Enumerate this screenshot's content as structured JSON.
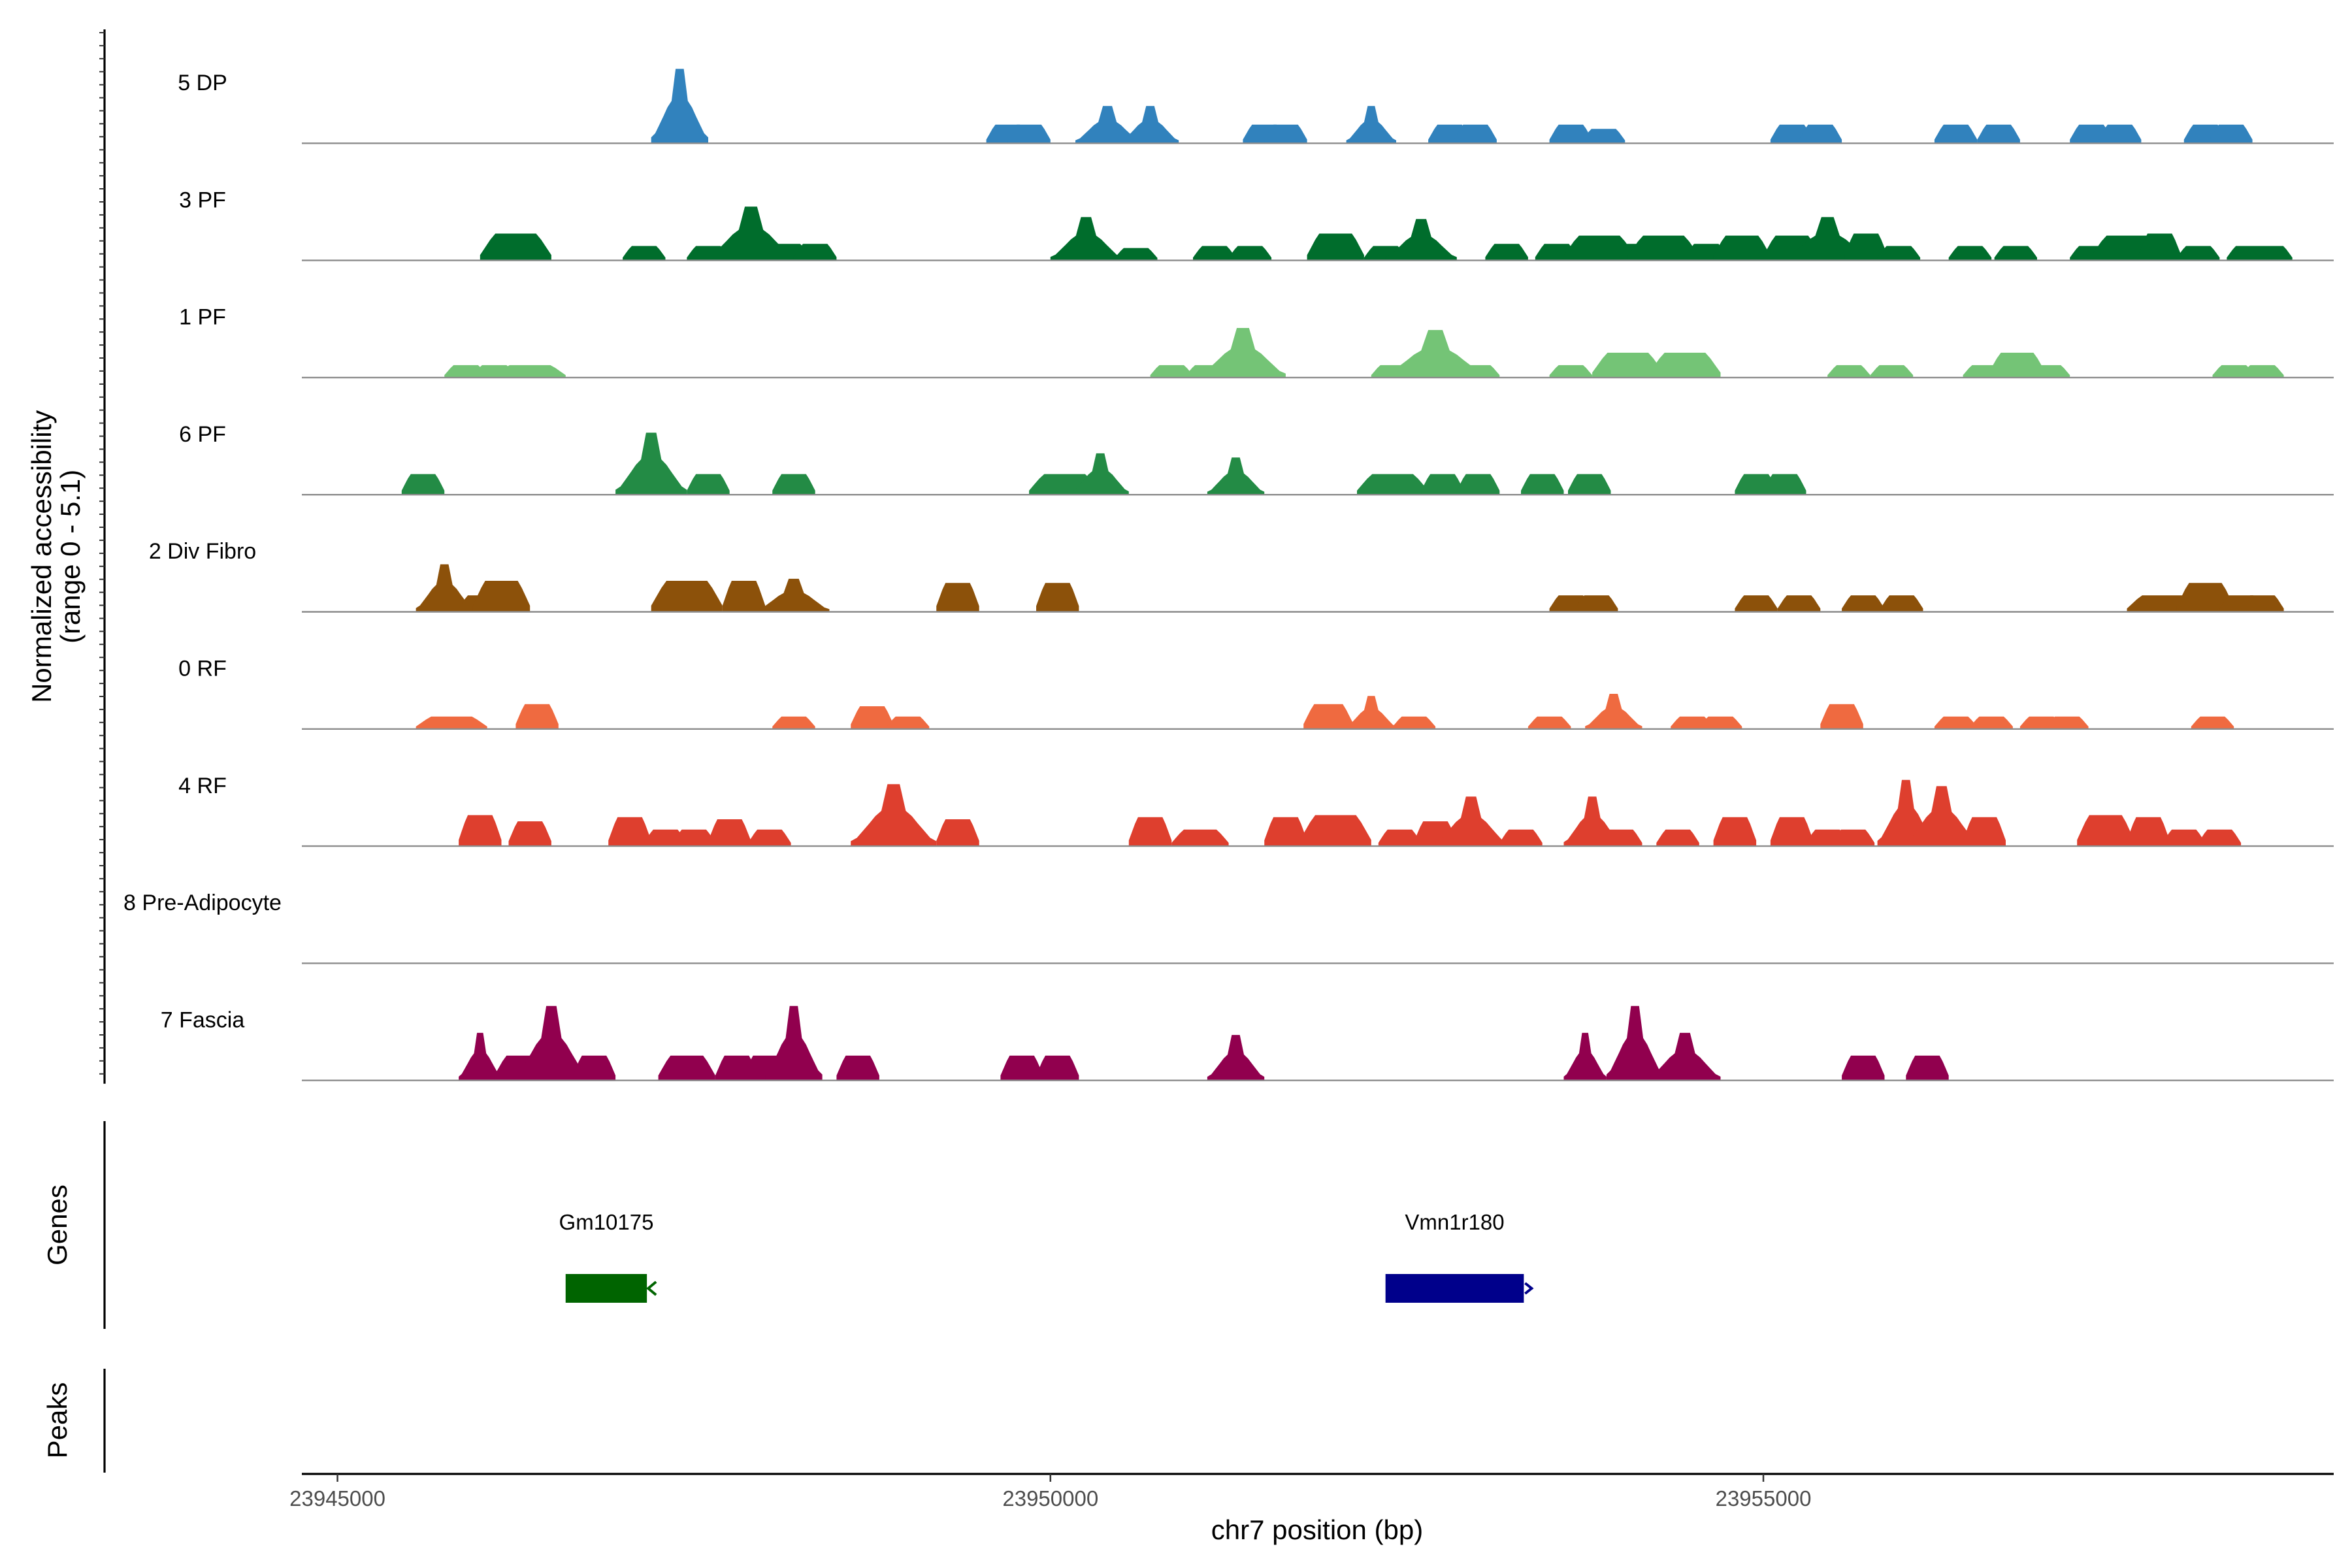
{
  "chart_data": {
    "type": "area",
    "title": "",
    "chromosome": "chr7",
    "xlabel": "chr7 position (bp)",
    "ylabel": [
      "Normalized accessibility",
      "(range 0 - 5.1)"
    ],
    "xlim": [
      23944750,
      23959000
    ],
    "ylim": [
      0,
      5.1
    ],
    "x_ticks": [
      {
        "value": 23945000,
        "label": "23945000"
      },
      {
        "value": 23950000,
        "label": "23950000"
      },
      {
        "value": 23955000,
        "label": "23955000"
      }
    ],
    "panel_titles": {
      "genes": "Genes",
      "peaks": "Peaks"
    },
    "series": [
      {
        "name": "5 DP",
        "color": "#3182BD",
        "peaks": [
          [
            23947400,
            0.4,
            3.6
          ],
          [
            23949700,
            0.3,
            0.9
          ],
          [
            23949850,
            0.3,
            0.9
          ],
          [
            23950400,
            0.45,
            1.8
          ],
          [
            23950700,
            0.4,
            1.8
          ],
          [
            23951500,
            0.3,
            0.9
          ],
          [
            23951650,
            0.3,
            0.9
          ],
          [
            23952250,
            0.35,
            1.8
          ],
          [
            23952800,
            0.3,
            0.9
          ],
          [
            23952980,
            0.3,
            0.9
          ],
          [
            23953650,
            0.3,
            0.9
          ],
          [
            23953880,
            0.3,
            0.7
          ],
          [
            23955200,
            0.3,
            0.9
          ],
          [
            23955400,
            0.3,
            0.9
          ],
          [
            23956350,
            0.3,
            0.9
          ],
          [
            23956650,
            0.3,
            0.9
          ],
          [
            23957300,
            0.3,
            0.9
          ],
          [
            23957500,
            0.3,
            0.9
          ],
          [
            23958100,
            0.3,
            0.9
          ],
          [
            23958280,
            0.3,
            0.9
          ]
        ]
      },
      {
        "name": "3 PF",
        "color": "#006D2C",
        "peaks": [
          [
            23946250,
            0.5,
            1.3
          ],
          [
            23947150,
            0.3,
            0.7
          ],
          [
            23947600,
            0.3,
            0.7
          ],
          [
            23947900,
            0.6,
            2.6
          ],
          [
            23948130,
            0.4,
            0.8
          ],
          [
            23948350,
            0.3,
            0.8
          ],
          [
            23950250,
            0.5,
            2.1
          ],
          [
            23950600,
            0.3,
            0.6
          ],
          [
            23951150,
            0.3,
            0.7
          ],
          [
            23951400,
            0.3,
            0.7
          ],
          [
            23952000,
            0.4,
            1.3
          ],
          [
            23952350,
            0.3,
            0.7
          ],
          [
            23952600,
            0.5,
            2.0
          ],
          [
            23953200,
            0.3,
            0.8
          ],
          [
            23953550,
            0.3,
            0.8
          ],
          [
            23953850,
            0.5,
            1.2
          ],
          [
            23954070,
            0.3,
            0.8
          ],
          [
            23954300,
            0.5,
            1.2
          ],
          [
            23954600,
            0.3,
            0.8
          ],
          [
            23954850,
            0.4,
            1.2
          ],
          [
            23955200,
            0.4,
            1.2
          ],
          [
            23955450,
            0.6,
            2.1
          ],
          [
            23955720,
            0.3,
            1.3
          ],
          [
            23955950,
            0.3,
            0.7
          ],
          [
            23956450,
            0.3,
            0.7
          ],
          [
            23956770,
            0.3,
            0.7
          ],
          [
            23957300,
            0.3,
            0.7
          ],
          [
            23957550,
            0.5,
            1.2
          ],
          [
            23957780,
            0.3,
            1.3
          ],
          [
            23958050,
            0.3,
            0.7
          ],
          [
            23958400,
            0.3,
            0.7
          ],
          [
            23958560,
            0.3,
            0.7
          ]
        ]
      },
      {
        "name": "1 PF",
        "color": "#74C476",
        "peaks": [
          [
            23945900,
            0.3,
            0.6
          ],
          [
            23946100,
            0.3,
            0.6
          ],
          [
            23946350,
            0.5,
            0.6
          ],
          [
            23950850,
            0.3,
            0.6
          ],
          [
            23951100,
            0.3,
            0.6
          ],
          [
            23951350,
            0.6,
            2.4
          ],
          [
            23952400,
            0.3,
            0.6
          ],
          [
            23952700,
            0.7,
            2.3
          ],
          [
            23953000,
            0.3,
            0.6
          ],
          [
            23953650,
            0.3,
            0.6
          ],
          [
            23954050,
            0.5,
            1.2
          ],
          [
            23954450,
            0.5,
            1.2
          ],
          [
            23955600,
            0.3,
            0.6
          ],
          [
            23955900,
            0.3,
            0.6
          ],
          [
            23956550,
            0.3,
            0.6
          ],
          [
            23956780,
            0.4,
            1.2
          ],
          [
            23957000,
            0.3,
            0.6
          ],
          [
            23958300,
            0.3,
            0.6
          ],
          [
            23958500,
            0.3,
            0.6
          ]
        ]
      },
      {
        "name": "6 PF",
        "color": "#238B45",
        "peaks": [
          [
            23945600,
            0.3,
            1.0
          ],
          [
            23947200,
            0.5,
            3.0
          ],
          [
            23947600,
            0.3,
            1.0
          ],
          [
            23948200,
            0.3,
            1.0
          ],
          [
            23950100,
            0.5,
            1.0
          ],
          [
            23950350,
            0.4,
            2.0
          ],
          [
            23951300,
            0.4,
            1.8
          ],
          [
            23952400,
            0.5,
            1.0
          ],
          [
            23952750,
            0.3,
            1.0
          ],
          [
            23953000,
            0.3,
            1.0
          ],
          [
            23953450,
            0.3,
            1.0
          ],
          [
            23953780,
            0.3,
            1.0
          ],
          [
            23954950,
            0.3,
            1.0
          ],
          [
            23955150,
            0.3,
            1.0
          ]
        ]
      },
      {
        "name": "2 Div Fibro",
        "color": "#8C510A",
        "peaks": [
          [
            23945750,
            0.4,
            2.3
          ],
          [
            23946000,
            0.3,
            0.8
          ],
          [
            23946150,
            0.4,
            1.5
          ],
          [
            23947450,
            0.5,
            1.5
          ],
          [
            23947850,
            0.3,
            1.5
          ],
          [
            23948200,
            0.5,
            1.6
          ],
          [
            23949350,
            0.3,
            1.4
          ],
          [
            23950050,
            0.3,
            1.4
          ],
          [
            23953650,
            0.3,
            0.8
          ],
          [
            23953830,
            0.3,
            0.8
          ],
          [
            23954950,
            0.3,
            0.8
          ],
          [
            23955250,
            0.3,
            0.8
          ],
          [
            23955700,
            0.3,
            0.8
          ],
          [
            23955970,
            0.3,
            0.8
          ],
          [
            23957800,
            0.5,
            0.8
          ],
          [
            23958100,
            0.4,
            1.4
          ],
          [
            23958350,
            0.3,
            0.8
          ],
          [
            23958500,
            0.3,
            0.8
          ]
        ]
      },
      {
        "name": "0 RF",
        "color": "#EF6A40",
        "peaks": [
          [
            23945800,
            0.5,
            0.6
          ],
          [
            23946400,
            0.3,
            1.2
          ],
          [
            23948200,
            0.3,
            0.6
          ],
          [
            23948750,
            0.3,
            1.1
          ],
          [
            23949000,
            0.3,
            0.6
          ],
          [
            23951950,
            0.35,
            1.2
          ],
          [
            23952250,
            0.35,
            1.6
          ],
          [
            23952550,
            0.3,
            0.6
          ],
          [
            23953500,
            0.3,
            0.6
          ],
          [
            23953950,
            0.4,
            1.7
          ],
          [
            23954500,
            0.3,
            0.6
          ],
          [
            23954700,
            0.3,
            0.6
          ],
          [
            23955550,
            0.3,
            1.2
          ],
          [
            23956350,
            0.3,
            0.6
          ],
          [
            23956600,
            0.3,
            0.6
          ],
          [
            23956950,
            0.3,
            0.6
          ],
          [
            23957130,
            0.3,
            0.6
          ],
          [
            23958150,
            0.3,
            0.6
          ]
        ]
      },
      {
        "name": "4 RF",
        "color": "#DE3F2E",
        "peaks": [
          [
            23946000,
            0.3,
            1.5
          ],
          [
            23946350,
            0.3,
            1.2
          ],
          [
            23947050,
            0.3,
            1.4
          ],
          [
            23947300,
            0.3,
            0.8
          ],
          [
            23947500,
            0.3,
            0.8
          ],
          [
            23947750,
            0.3,
            1.3
          ],
          [
            23948030,
            0.3,
            0.8
          ],
          [
            23948900,
            0.6,
            3.0
          ],
          [
            23949350,
            0.3,
            1.3
          ],
          [
            23950700,
            0.3,
            1.4
          ],
          [
            23951050,
            0.4,
            0.8
          ],
          [
            23951650,
            0.3,
            1.4
          ],
          [
            23952000,
            0.5,
            1.5
          ],
          [
            23952450,
            0.3,
            0.8
          ],
          [
            23952700,
            0.3,
            1.2
          ],
          [
            23952950,
            0.5,
            2.4
          ],
          [
            23953300,
            0.3,
            0.8
          ],
          [
            23953800,
            0.4,
            2.4
          ],
          [
            23954000,
            0.3,
            0.8
          ],
          [
            23954400,
            0.3,
            0.8
          ],
          [
            23954800,
            0.3,
            1.4
          ],
          [
            23955200,
            0.3,
            1.4
          ],
          [
            23955450,
            0.3,
            0.8
          ],
          [
            23955630,
            0.3,
            0.8
          ],
          [
            23956000,
            0.4,
            3.2
          ],
          [
            23956250,
            0.5,
            2.9
          ],
          [
            23956550,
            0.3,
            1.4
          ],
          [
            23957400,
            0.4,
            1.5
          ],
          [
            23957700,
            0.3,
            1.4
          ],
          [
            23957950,
            0.3,
            0.8
          ],
          [
            23958200,
            0.3,
            0.8
          ]
        ]
      },
      {
        "name": "8 Pre-Adipocyte",
        "color": "#4A1486",
        "peaks": []
      },
      {
        "name": "7 Fascia",
        "color": "#91004E",
        "peaks": [
          [
            23946000,
            0.3,
            2.3
          ],
          [
            23946300,
            0.4,
            1.2
          ],
          [
            23946500,
            0.5,
            3.6
          ],
          [
            23946800,
            0.3,
            1.2
          ],
          [
            23947450,
            0.4,
            1.2
          ],
          [
            23947800,
            0.3,
            1.2
          ],
          [
            23948000,
            0.3,
            1.2
          ],
          [
            23948200,
            0.4,
            3.6
          ],
          [
            23948650,
            0.3,
            1.2
          ],
          [
            23949800,
            0.3,
            1.2
          ],
          [
            23950050,
            0.3,
            1.2
          ],
          [
            23951300,
            0.4,
            2.2
          ],
          [
            23953750,
            0.3,
            2.3
          ],
          [
            23954100,
            0.4,
            3.6
          ],
          [
            23954450,
            0.5,
            2.3
          ],
          [
            23955700,
            0.3,
            1.2
          ],
          [
            23956150,
            0.3,
            1.2
          ]
        ]
      }
    ],
    "genes": [
      {
        "name": "Gm10175",
        "start": 23946600,
        "end": 23947170,
        "strand": "-",
        "color": "#006400"
      },
      {
        "name": "Vmn1r180",
        "start": 23952350,
        "end": 23953320,
        "strand": "+",
        "color": "#00008B"
      }
    ],
    "peaks_track": []
  }
}
